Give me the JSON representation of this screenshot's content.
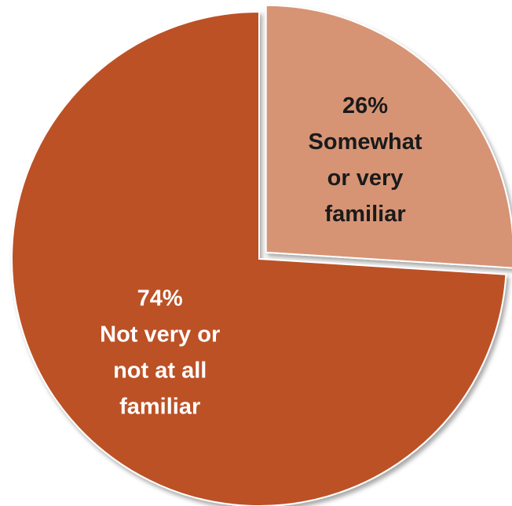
{
  "chart_data": {
    "type": "pie",
    "title": "",
    "slices": [
      {
        "value": 26,
        "percent_label": "26%",
        "label_lines": [
          "Somewhat",
          "or very",
          "familiar"
        ],
        "color": "#D69474",
        "text_color": "#1a1a1a",
        "exploded": true
      },
      {
        "value": 74,
        "percent_label": "74%",
        "label_lines": [
          "Not very or",
          "not at all",
          "familiar"
        ],
        "color": "#BC5126",
        "text_color": "#ffffff",
        "exploded": false
      }
    ],
    "start_angle_deg": 0,
    "direction": "clockwise",
    "legend": "none"
  }
}
